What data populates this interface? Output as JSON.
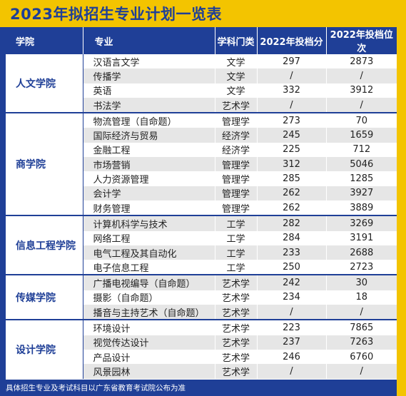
{
  "title": "2023年拟招生专业计划一览表",
  "headers": {
    "college": "学院",
    "major": "专业",
    "category": "学科门类",
    "score": "2022年投档分",
    "rank": "2022年投档位次"
  },
  "groups": [
    {
      "college": "人文学院",
      "rows": [
        {
          "major": "汉语言文学",
          "category": "文学",
          "score": "297",
          "rank": "2873"
        },
        {
          "major": "传播学",
          "category": "文学",
          "score": "/",
          "rank": "/"
        },
        {
          "major": "英语",
          "category": "文学",
          "score": "332",
          "rank": "3912"
        },
        {
          "major": "书法学",
          "category": "艺术学",
          "score": "/",
          "rank": "/"
        }
      ]
    },
    {
      "college": "商学院",
      "rows": [
        {
          "major": "物流管理（自命题）",
          "category": "管理学",
          "score": "273",
          "rank": "70"
        },
        {
          "major": "国际经济与贸易",
          "category": "经济学",
          "score": "245",
          "rank": "1659"
        },
        {
          "major": "金融工程",
          "category": "经济学",
          "score": "225",
          "rank": "712"
        },
        {
          "major": "市场营销",
          "category": "管理学",
          "score": "312",
          "rank": "5046"
        },
        {
          "major": "人力资源管理",
          "category": "管理学",
          "score": "285",
          "rank": "1285"
        },
        {
          "major": "会计学",
          "category": "管理学",
          "score": "262",
          "rank": "3927"
        },
        {
          "major": "财务管理",
          "category": "管理学",
          "score": "262",
          "rank": "3889"
        }
      ]
    },
    {
      "college": "信息工程学院",
      "rows": [
        {
          "major": "计算机科学与技术",
          "category": "工学",
          "score": "282",
          "rank": "3269"
        },
        {
          "major": "网络工程",
          "category": "工学",
          "score": "284",
          "rank": "3191"
        },
        {
          "major": "电气工程及其自动化",
          "category": "工学",
          "score": "233",
          "rank": "2688"
        },
        {
          "major": "电子信息工程",
          "category": "工学",
          "score": "250",
          "rank": "2723"
        }
      ]
    },
    {
      "college": "传媒学院",
      "rows": [
        {
          "major": "广播电视编导（自命题）",
          "category": "艺术学",
          "score": "242",
          "rank": "30"
        },
        {
          "major": "摄影（自命题）",
          "category": "艺术学",
          "score": "234",
          "rank": "18"
        },
        {
          "major": "播音与主持艺术（自命题）",
          "category": "艺术学",
          "score": "/",
          "rank": "/"
        }
      ]
    },
    {
      "college": "设计学院",
      "rows": [
        {
          "major": "环境设计",
          "category": "艺术学",
          "score": "223",
          "rank": "7865"
        },
        {
          "major": "视觉传达设计",
          "category": "艺术学",
          "score": "237",
          "rank": "7263"
        },
        {
          "major": "产品设计",
          "category": "艺术学",
          "score": "246",
          "rank": "6760"
        },
        {
          "major": "风景园林",
          "category": "艺术学",
          "score": "/",
          "rank": "/"
        }
      ]
    }
  ],
  "footer": "具体招生专业及考试科目以广东省教育考试院公布为准"
}
